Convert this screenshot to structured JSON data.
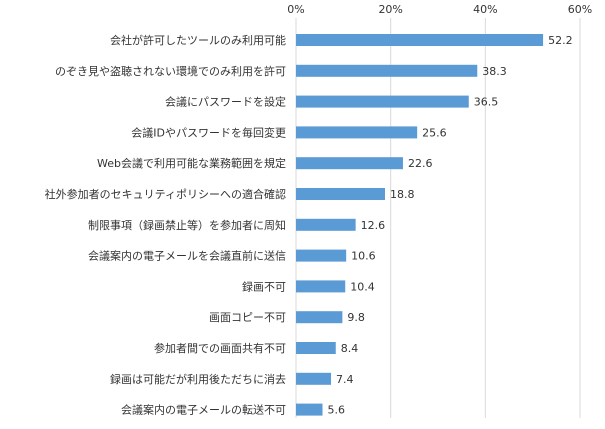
{
  "chart_data": {
    "type": "bar",
    "orientation": "horizontal",
    "title": "",
    "xlabel": "",
    "ylabel": "",
    "xlim": [
      0,
      60
    ],
    "ticks": [
      0,
      20,
      40,
      60
    ],
    "tick_labels": [
      "0%",
      "20%",
      "40%",
      "60%"
    ],
    "axis_position": "top",
    "grid": true,
    "legend": "none",
    "bar_color": "#5B9BD5",
    "grid_color": "#D9D9D9",
    "categories": [
      "会社が許可したツールのみ利用可能",
      "のぞき見や盗聴されない環境でのみ利用を許可",
      "会議にパスワードを設定",
      "会議IDやパスワードを毎回変更",
      "Web会議で利用可能な業務範囲を規定",
      "社外参加者のセキュリティポリシーへの適合確認",
      "制限事項（録画禁止等）を参加者に周知",
      "会議案内の電子メールを会議直前に送信",
      "録画不可",
      "画面コピー不可",
      "参加者間での画面共有不可",
      "録画は可能だが利用後ただちに消去",
      "会議案内の電子メールの転送不可"
    ],
    "values": [
      52.2,
      38.3,
      36.5,
      25.6,
      22.6,
      18.8,
      12.6,
      10.6,
      10.4,
      9.8,
      8.4,
      7.4,
      5.6
    ],
    "value_labels": [
      "52.2",
      "38.3",
      "36.5",
      "25.6",
      "22.6",
      "18.8",
      "12.6",
      "10.6",
      "10.4",
      "9.8",
      "8.4",
      "7.4",
      "5.6"
    ]
  }
}
